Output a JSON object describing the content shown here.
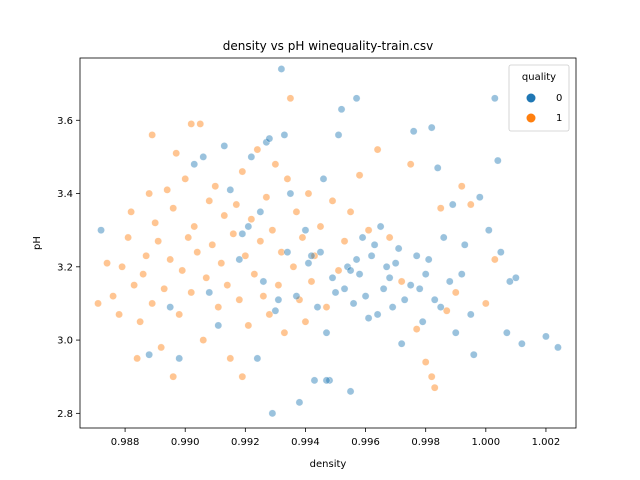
{
  "chart_data": {
    "type": "scatter",
    "title": "density vs pH winequality-train.csv",
    "xlabel": "density",
    "ylabel": "pH",
    "xlim": [
      0.9865,
      1.003
    ],
    "ylim": [
      2.76,
      3.77
    ],
    "x_ticks": [
      "0.988",
      "0.990",
      "0.992",
      "0.994",
      "0.996",
      "0.998",
      "1.000",
      "1.002"
    ],
    "y_ticks": [
      "2.8",
      "3.0",
      "3.2",
      "3.4",
      "3.6"
    ],
    "grid": false,
    "legend": {
      "title": "quality",
      "position": "top-right"
    },
    "colors": {
      "0": "#1f77b4",
      "1": "#ff7f0e"
    },
    "point_alpha": 0.45,
    "series": [
      {
        "name": "0",
        "points": [
          [
            0.9872,
            3.3
          ],
          [
            0.9888,
            2.96
          ],
          [
            0.9895,
            3.09
          ],
          [
            0.9898,
            2.95
          ],
          [
            0.9903,
            3.48
          ],
          [
            0.9906,
            3.5
          ],
          [
            0.9908,
            3.13
          ],
          [
            0.9911,
            3.04
          ],
          [
            0.9913,
            3.53
          ],
          [
            0.9915,
            3.41
          ],
          [
            0.9918,
            3.22
          ],
          [
            0.9919,
            3.29
          ],
          [
            0.9921,
            3.31
          ],
          [
            0.9922,
            3.5
          ],
          [
            0.9924,
            2.95
          ],
          [
            0.9925,
            3.35
          ],
          [
            0.9926,
            3.16
          ],
          [
            0.9927,
            3.54
          ],
          [
            0.9928,
            3.55
          ],
          [
            0.993,
            3.08
          ],
          [
            0.9931,
            3.11
          ],
          [
            0.9932,
            3.74
          ],
          [
            0.9933,
            3.56
          ],
          [
            0.9934,
            3.24
          ],
          [
            0.9935,
            3.4
          ],
          [
            0.9937,
            3.12
          ],
          [
            0.9938,
            2.83
          ],
          [
            0.994,
            3.3
          ],
          [
            0.9941,
            3.21
          ],
          [
            0.9942,
            3.23
          ],
          [
            0.9944,
            3.09
          ],
          [
            0.9945,
            3.24
          ],
          [
            0.9946,
            3.44
          ],
          [
            0.9947,
            3.02
          ],
          [
            0.9948,
            2.89
          ],
          [
            0.9949,
            3.17
          ],
          [
            0.995,
            3.13
          ],
          [
            0.9951,
            3.56
          ],
          [
            0.9952,
            3.63
          ],
          [
            0.9953,
            3.14
          ],
          [
            0.9954,
            3.2
          ],
          [
            0.9955,
            3.19
          ],
          [
            0.9956,
            3.1
          ],
          [
            0.9957,
            3.22
          ],
          [
            0.9958,
            3.18
          ],
          [
            0.9959,
            3.28
          ],
          [
            0.996,
            3.12
          ],
          [
            0.9961,
            3.06
          ],
          [
            0.9962,
            3.23
          ],
          [
            0.9963,
            3.26
          ],
          [
            0.9964,
            3.07
          ],
          [
            0.9965,
            3.31
          ],
          [
            0.9966,
            3.14
          ],
          [
            0.9967,
            3.2
          ],
          [
            0.9968,
            3.17
          ],
          [
            0.9969,
            3.09
          ],
          [
            0.997,
            3.21
          ],
          [
            0.9971,
            3.25
          ],
          [
            0.9972,
            2.99
          ],
          [
            0.9973,
            3.11
          ],
          [
            0.9975,
            3.15
          ],
          [
            0.9976,
            3.57
          ],
          [
            0.9977,
            3.23
          ],
          [
            0.9978,
            3.14
          ],
          [
            0.9979,
            3.05
          ],
          [
            0.998,
            3.18
          ],
          [
            0.9981,
            3.22
          ],
          [
            0.9982,
            3.58
          ],
          [
            0.9983,
            3.11
          ],
          [
            0.9984,
            3.47
          ],
          [
            0.9985,
            3.09
          ],
          [
            0.9986,
            3.28
          ],
          [
            0.9988,
            3.16
          ],
          [
            0.9989,
            3.37
          ],
          [
            0.999,
            3.02
          ],
          [
            0.9992,
            3.18
          ],
          [
            0.9993,
            3.26
          ],
          [
            0.9995,
            3.07
          ],
          [
            0.9996,
            2.96
          ],
          [
            0.9998,
            3.39
          ],
          [
            1.0001,
            3.3
          ],
          [
            1.0003,
            3.66
          ],
          [
            1.0004,
            3.49
          ],
          [
            1.0005,
            3.24
          ],
          [
            1.0007,
            3.02
          ],
          [
            1.0008,
            3.16
          ],
          [
            1.001,
            3.17
          ],
          [
            1.0012,
            2.99
          ],
          [
            1.002,
            3.01
          ],
          [
            1.0024,
            2.98
          ],
          [
            0.9929,
            2.8
          ],
          [
            0.9943,
            2.89
          ],
          [
            0.9947,
            2.89
          ],
          [
            0.9955,
            2.86
          ],
          [
            0.9957,
            3.66
          ]
        ]
      },
      {
        "name": "1",
        "points": [
          [
            0.9871,
            3.1
          ],
          [
            0.9874,
            3.21
          ],
          [
            0.9876,
            3.12
          ],
          [
            0.9878,
            3.07
          ],
          [
            0.9879,
            3.2
          ],
          [
            0.9881,
            3.28
          ],
          [
            0.9882,
            3.35
          ],
          [
            0.9883,
            3.15
          ],
          [
            0.9884,
            2.95
          ],
          [
            0.9885,
            3.05
          ],
          [
            0.9886,
            3.18
          ],
          [
            0.9887,
            3.23
          ],
          [
            0.9888,
            3.4
          ],
          [
            0.9889,
            3.1
          ],
          [
            0.9889,
            3.56
          ],
          [
            0.989,
            3.32
          ],
          [
            0.9891,
            3.27
          ],
          [
            0.9892,
            2.98
          ],
          [
            0.9893,
            3.14
          ],
          [
            0.9894,
            3.41
          ],
          [
            0.9895,
            3.22
          ],
          [
            0.9896,
            3.36
          ],
          [
            0.9897,
            3.51
          ],
          [
            0.9898,
            3.07
          ],
          [
            0.9899,
            3.19
          ],
          [
            0.99,
            3.44
          ],
          [
            0.9901,
            3.28
          ],
          [
            0.9902,
            3.13
          ],
          [
            0.9903,
            3.31
          ],
          [
            0.9904,
            3.24
          ],
          [
            0.9905,
            3.59
          ],
          [
            0.9906,
            3.0
          ],
          [
            0.9907,
            3.17
          ],
          [
            0.9908,
            3.38
          ],
          [
            0.9909,
            3.26
          ],
          [
            0.991,
            3.42
          ],
          [
            0.9911,
            3.09
          ],
          [
            0.9912,
            3.21
          ],
          [
            0.9913,
            3.34
          ],
          [
            0.9914,
            3.15
          ],
          [
            0.9915,
            2.95
          ],
          [
            0.9916,
            3.29
          ],
          [
            0.9917,
            3.37
          ],
          [
            0.9918,
            3.11
          ],
          [
            0.9919,
            3.46
          ],
          [
            0.992,
            3.23
          ],
          [
            0.9921,
            3.04
          ],
          [
            0.9922,
            3.33
          ],
          [
            0.9923,
            3.18
          ],
          [
            0.9924,
            3.52
          ],
          [
            0.9925,
            3.27
          ],
          [
            0.9926,
            3.12
          ],
          [
            0.9927,
            3.39
          ],
          [
            0.9928,
            3.07
          ],
          [
            0.9929,
            3.3
          ],
          [
            0.993,
            3.48
          ],
          [
            0.9931,
            3.15
          ],
          [
            0.9932,
            3.24
          ],
          [
            0.9933,
            3.02
          ],
          [
            0.9934,
            3.44
          ],
          [
            0.9935,
            3.66
          ],
          [
            0.9936,
            3.2
          ],
          [
            0.9937,
            3.35
          ],
          [
            0.9938,
            3.11
          ],
          [
            0.9939,
            3.28
          ],
          [
            0.994,
            3.05
          ],
          [
            0.9941,
            3.4
          ],
          [
            0.9942,
            3.16
          ],
          [
            0.9943,
            3.23
          ],
          [
            0.9945,
            3.31
          ],
          [
            0.9947,
            3.09
          ],
          [
            0.9949,
            3.38
          ],
          [
            0.9951,
            3.19
          ],
          [
            0.9953,
            3.27
          ],
          [
            0.9955,
            3.35
          ],
          [
            0.9958,
            3.45
          ],
          [
            0.9961,
            3.3
          ],
          [
            0.9964,
            3.52
          ],
          [
            0.9968,
            3.28
          ],
          [
            0.9972,
            3.16
          ],
          [
            0.9975,
            3.48
          ],
          [
            0.9977,
            3.03
          ],
          [
            0.998,
            2.94
          ],
          [
            0.9982,
            2.9
          ],
          [
            0.9983,
            2.87
          ],
          [
            0.9985,
            3.36
          ],
          [
            0.9987,
            3.08
          ],
          [
            0.999,
            3.13
          ],
          [
            0.9992,
            3.42
          ],
          [
            0.9995,
            3.37
          ],
          [
            1.0,
            3.1
          ],
          [
            1.0003,
            3.22
          ],
          [
            0.9896,
            2.9
          ],
          [
            0.9902,
            3.59
          ],
          [
            0.9919,
            2.9
          ]
        ]
      }
    ]
  }
}
